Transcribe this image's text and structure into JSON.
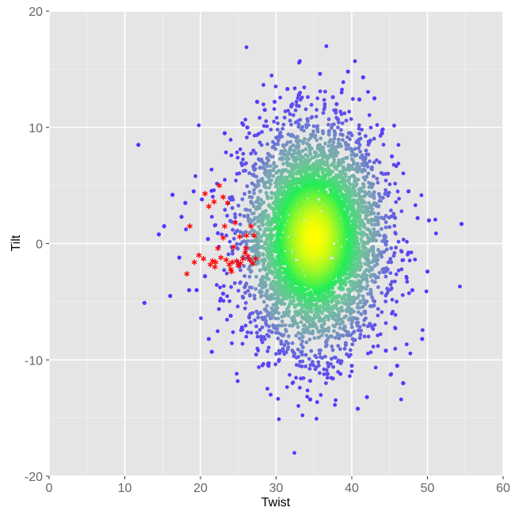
{
  "chart_data": {
    "type": "scatter",
    "title": "",
    "xlabel": "Twist",
    "ylabel": "Tilt",
    "xlim": [
      0,
      60
    ],
    "ylim": [
      -20,
      20
    ],
    "x_ticks": [
      0,
      10,
      20,
      30,
      40,
      50,
      60
    ],
    "y_ticks": [
      -20,
      -10,
      0,
      10,
      20
    ],
    "x_tick_labels": [
      "0",
      "10",
      "20",
      "30",
      "40",
      "50",
      "60"
    ],
    "y_tick_labels": [
      "-20",
      "-10",
      "0",
      "10",
      "20"
    ],
    "grid": true,
    "legend": "none",
    "colors": {
      "panel_background": "#e5e5e5",
      "grid_major": "#ffffff",
      "grid_minor": "#f2f2f2",
      "density_low": "#5533ff",
      "density_mid_low": "#7a9fb8",
      "density_mid": "#6ec49a",
      "density_mid_high": "#22ee55",
      "density_high": "#ffff00",
      "highlight": "#ff0000"
    },
    "cluster": {
      "center_x": 35,
      "center_y": 0.5,
      "sd_x": 4.5,
      "sd_y": 4.6,
      "n_points": 5000
    },
    "series": [
      {
        "marker": "dot",
        "points": [
          [
            11.8,
            8.5
          ],
          [
            12.6,
            -5.1
          ],
          [
            14.5,
            0.8
          ],
          [
            15.2,
            1.5
          ],
          [
            16.0,
            -4.5
          ],
          [
            16.3,
            4.2
          ],
          [
            17.2,
            -1.2
          ],
          [
            17.5,
            2.3
          ],
          [
            18.0,
            3.5
          ],
          [
            18.5,
            -4.0
          ],
          [
            19.1,
            4.5
          ],
          [
            19.5,
            -4.0
          ],
          [
            20.2,
            3.8
          ],
          [
            20.6,
            -2.8
          ],
          [
            21.1,
            -8.2
          ],
          [
            21.5,
            -9.3
          ],
          [
            21.0,
            0.4
          ],
          [
            22.3,
            0.9
          ],
          [
            23.0,
            -4.3
          ],
          [
            23.2,
            9.5
          ],
          [
            24.0,
            -6.2
          ],
          [
            25.5,
            -7.2
          ],
          [
            26.2,
            10.0
          ],
          [
            27.0,
            8.0
          ],
          [
            27.5,
            12.2
          ],
          [
            28.0,
            -8.0
          ],
          [
            28.5,
            11.5
          ],
          [
            29.0,
            -10.5
          ],
          [
            29.8,
            12.2
          ],
          [
            30.4,
            -10.0
          ],
          [
            31.5,
            13.3
          ],
          [
            32.0,
            11.8
          ],
          [
            33.0,
            12.8
          ],
          [
            34.5,
            -11.8
          ],
          [
            35.8,
            14.6
          ],
          [
            36.8,
            -11.2
          ],
          [
            37.5,
            12.6
          ],
          [
            38.0,
            12.0
          ],
          [
            38.5,
            -11.2
          ],
          [
            39.5,
            14.8
          ],
          [
            40.0,
            -10.5
          ],
          [
            41.0,
            12.4
          ],
          [
            41.5,
            14.3
          ],
          [
            40.8,
            -14.2
          ],
          [
            42.0,
            -13.2
          ],
          [
            43.0,
            12.5
          ],
          [
            44.0,
            9.5
          ],
          [
            44.5,
            -9.2
          ],
          [
            45.3,
            7.5
          ],
          [
            46.0,
            -10.5
          ],
          [
            46.8,
            -12.0
          ],
          [
            47.5,
            4.5
          ],
          [
            48.0,
            -4.0
          ],
          [
            48.7,
            2.2
          ],
          [
            49.3,
            -8.2
          ],
          [
            50.0,
            -2.4
          ],
          [
            50.2,
            2.0
          ],
          [
            54.5,
            1.7
          ],
          [
            34.5,
            -13.4
          ],
          [
            37.5,
            -11.6
          ]
        ]
      },
      {
        "marker": "asterisk",
        "points": [
          [
            18.2,
            -2.6
          ],
          [
            18.6,
            1.5
          ],
          [
            19.2,
            -1.6
          ],
          [
            19.8,
            -1.0
          ],
          [
            20.4,
            -1.3
          ],
          [
            20.6,
            4.3
          ],
          [
            21.1,
            3.2
          ],
          [
            21.3,
            -1.8
          ],
          [
            21.6,
            -1.5
          ],
          [
            21.9,
            -2.0
          ],
          [
            22.3,
            -0.4
          ],
          [
            22.5,
            5.0
          ],
          [
            22.7,
            -1.2
          ],
          [
            23.0,
            4.0
          ],
          [
            23.2,
            1.5
          ],
          [
            23.4,
            -1.4
          ],
          [
            23.6,
            3.5
          ],
          [
            23.8,
            -1.8
          ],
          [
            24.0,
            -2.2
          ],
          [
            24.2,
            -1.6
          ],
          [
            24.4,
            -0.3
          ],
          [
            24.6,
            1.8
          ],
          [
            24.8,
            -1.5
          ],
          [
            25.0,
            -1.9
          ],
          [
            25.3,
            -1.7
          ],
          [
            25.6,
            -1.3
          ],
          [
            25.9,
            -0.8
          ],
          [
            26.1,
            0.7
          ],
          [
            26.3,
            -1.1
          ],
          [
            26.5,
            -1.4
          ],
          [
            26.7,
            1.5
          ],
          [
            26.9,
            -1.7
          ],
          [
            27.1,
            0.7
          ],
          [
            27.3,
            -1.3
          ],
          [
            23.0,
            0.5
          ],
          [
            24.1,
            -2.4
          ],
          [
            25.2,
            0.6
          ],
          [
            22.0,
            -1.6
          ],
          [
            26.0,
            -0.4
          ],
          [
            21.8,
            3.6
          ]
        ]
      }
    ]
  }
}
